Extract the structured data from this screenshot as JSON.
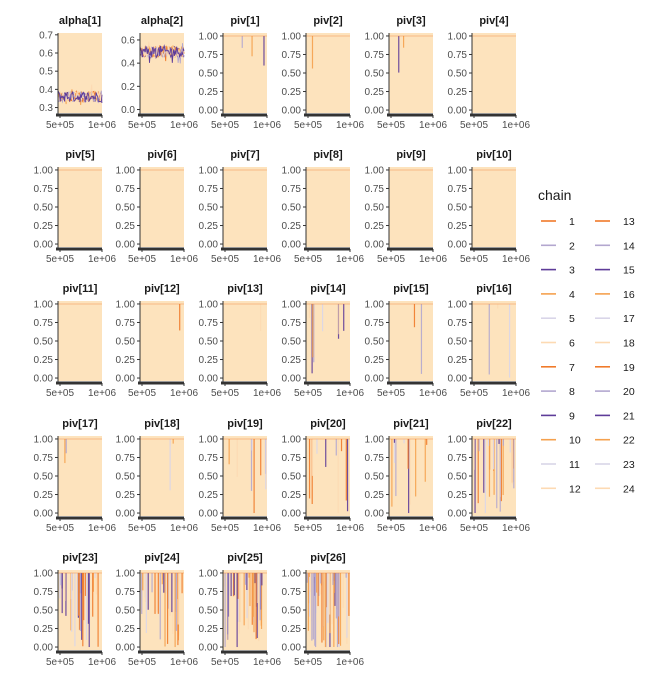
{
  "chart_data": {
    "type": "line",
    "plot_kind": "mcmc-trace-facets",
    "panel_background": "#fde3bd",
    "x_ticks": [
      "5e+05",
      "1e+06"
    ],
    "x_range": [
      500000,
      1000000
    ],
    "legend": {
      "title": "chain",
      "position": "right",
      "chains": [
        {
          "name": "1",
          "color": "#f07a2a"
        },
        {
          "name": "2",
          "color": "#b3a7cf"
        },
        {
          "name": "3",
          "color": "#5e3c99"
        },
        {
          "name": "4",
          "color": "#f5a14e"
        },
        {
          "name": "5",
          "color": "#d9d5e8"
        },
        {
          "name": "6",
          "color": "#fddab3"
        },
        {
          "name": "7",
          "color": "#f07a2a"
        },
        {
          "name": "8",
          "color": "#b3a7cf"
        },
        {
          "name": "9",
          "color": "#5e3c99"
        },
        {
          "name": "10",
          "color": "#f5a14e"
        },
        {
          "name": "11",
          "color": "#d9d5e8"
        },
        {
          "name": "12",
          "color": "#fddab3"
        },
        {
          "name": "13",
          "color": "#f07a2a"
        },
        {
          "name": "14",
          "color": "#b3a7cf"
        },
        {
          "name": "15",
          "color": "#5e3c99"
        },
        {
          "name": "16",
          "color": "#f5a14e"
        },
        {
          "name": "17",
          "color": "#d9d5e8"
        },
        {
          "name": "18",
          "color": "#fddab3"
        },
        {
          "name": "19",
          "color": "#f07a2a"
        },
        {
          "name": "20",
          "color": "#b3a7cf"
        },
        {
          "name": "21",
          "color": "#5e3c99"
        },
        {
          "name": "22",
          "color": "#f5a14e"
        },
        {
          "name": "23",
          "color": "#d9d5e8"
        },
        {
          "name": "24",
          "color": "#fddab3"
        }
      ]
    },
    "panels": [
      {
        "title": "alpha[1]",
        "kind": "noisy",
        "ylim": [
          0.27,
          0.71
        ],
        "yticks": [
          "0.3",
          "0.4",
          "0.5",
          "0.6",
          "0.7"
        ],
        "ytick_values": [
          0.3,
          0.4,
          0.5,
          0.6,
          0.7
        ],
        "center": 0.36,
        "spread": 0.03,
        "spikes": 0
      },
      {
        "title": "alpha[2]",
        "kind": "noisy",
        "ylim": [
          -0.03,
          0.66
        ],
        "yticks": [
          "0.0",
          "0.2",
          "0.4",
          "0.6"
        ],
        "ytick_values": [
          0.0,
          0.2,
          0.4,
          0.6
        ],
        "center": 0.5,
        "spread": 0.05,
        "spikes": 0
      },
      {
        "title": "piv[1]",
        "kind": "prob",
        "spikes": 3
      },
      {
        "title": "piv[2]",
        "kind": "prob",
        "spikes": 1
      },
      {
        "title": "piv[3]",
        "kind": "prob",
        "spikes": 2
      },
      {
        "title": "piv[4]",
        "kind": "prob",
        "spikes": 0
      },
      {
        "title": "piv[5]",
        "kind": "prob",
        "spikes": 0
      },
      {
        "title": "piv[6]",
        "kind": "prob",
        "spikes": 0
      },
      {
        "title": "piv[7]",
        "kind": "prob",
        "spikes": 0
      },
      {
        "title": "piv[8]",
        "kind": "prob",
        "spikes": 0
      },
      {
        "title": "piv[9]",
        "kind": "prob",
        "spikes": 0
      },
      {
        "title": "piv[10]",
        "kind": "prob",
        "spikes": 0
      },
      {
        "title": "piv[11]",
        "kind": "prob",
        "spikes": 0
      },
      {
        "title": "piv[12]",
        "kind": "prob",
        "spikes": 1
      },
      {
        "title": "piv[13]",
        "kind": "prob",
        "spikes": 1
      },
      {
        "title": "piv[14]",
        "kind": "prob",
        "spikes": 9
      },
      {
        "title": "piv[15]",
        "kind": "prob",
        "spikes": 2
      },
      {
        "title": "piv[16]",
        "kind": "prob",
        "spikes": 3
      },
      {
        "title": "piv[17]",
        "kind": "prob",
        "spikes": 2
      },
      {
        "title": "piv[18]",
        "kind": "prob",
        "spikes": 3
      },
      {
        "title": "piv[19]",
        "kind": "prob",
        "spikes": 8
      },
      {
        "title": "piv[20]",
        "kind": "prob",
        "spikes": 10
      },
      {
        "title": "piv[21]",
        "kind": "prob",
        "spikes": 11
      },
      {
        "title": "piv[22]",
        "kind": "prob",
        "spikes": 26
      },
      {
        "title": "piv[23]",
        "kind": "prob",
        "spikes": 30
      },
      {
        "title": "piv[24]",
        "kind": "prob",
        "spikes": 32
      },
      {
        "title": "piv[25]",
        "kind": "prob",
        "spikes": 40
      },
      {
        "title": "piv[26]",
        "kind": "prob",
        "spikes": 55
      }
    ],
    "prob_yticks": [
      "0.00",
      "0.25",
      "0.50",
      "0.75",
      "1.00"
    ],
    "prob_ytick_values": [
      0.0,
      0.25,
      0.5,
      0.75,
      1.0
    ],
    "prob_ylim": [
      -0.04,
      1.04
    ]
  }
}
